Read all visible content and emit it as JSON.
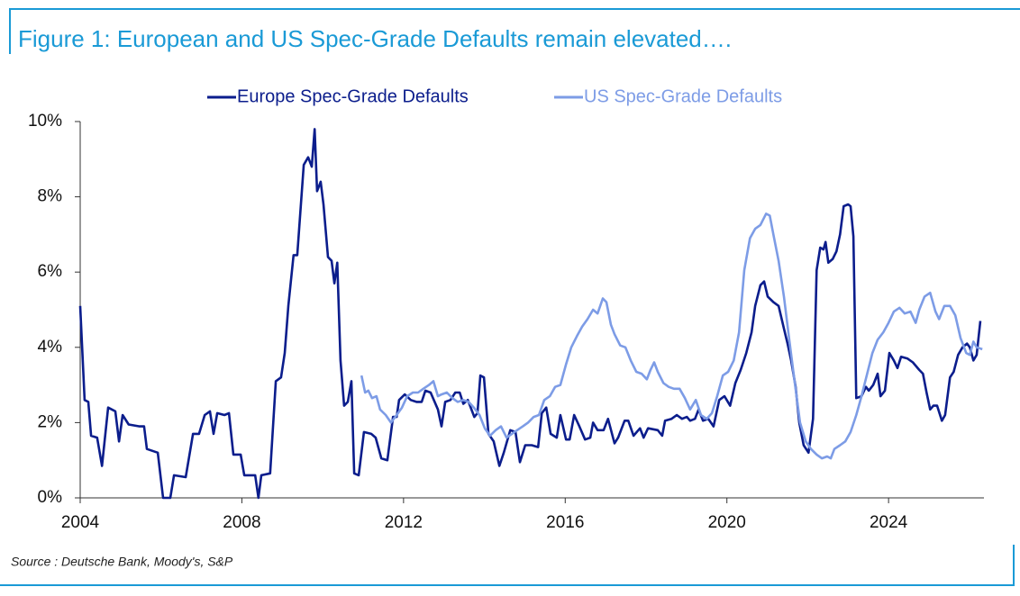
{
  "chart_data": {
    "type": "line",
    "title": "Figure 1: European and US Spec-Grade Defaults remain elevated….",
    "source": "Source : Deutsche Bank, Moody's, S&P",
    "xlim": [
      2004,
      2026.36
    ],
    "xticks": [
      2004,
      2008,
      2012,
      2016,
      2020,
      2024
    ],
    "ylim": [
      0,
      10
    ],
    "yticks": [
      {
        "value": 0,
        "label": "0%"
      },
      {
        "value": 2,
        "label": "2%"
      },
      {
        "value": 4,
        "label": "4%"
      },
      {
        "value": 6,
        "label": "6%"
      },
      {
        "value": 8,
        "label": "8%"
      },
      {
        "value": 10,
        "label": "10%"
      }
    ],
    "grid": false,
    "legend": "top",
    "series": [
      {
        "name": "Europe Spec-Grade Defaults",
        "color": "#0b1d8c",
        "x": [
          2004.0,
          2004.11,
          2004.2,
          2004.27,
          2004.42,
          2004.54,
          2004.69,
          2004.87,
          2004.96,
          2005.05,
          2005.2,
          2005.47,
          2005.58,
          2005.65,
          2005.92,
          2006.05,
          2006.23,
          2006.32,
          2006.61,
          2006.79,
          2006.94,
          2007.08,
          2007.21,
          2007.3,
          2007.39,
          2007.57,
          2007.68,
          2007.79,
          2007.97,
          2008.06,
          2008.33,
          2008.41,
          2008.48,
          2008.7,
          2008.84,
          2008.97,
          2009.06,
          2009.15,
          2009.28,
          2009.37,
          2009.53,
          2009.64,
          2009.73,
          2009.8,
          2009.86,
          2009.95,
          2010.02,
          2010.13,
          2010.22,
          2010.29,
          2010.36,
          2010.44,
          2010.53,
          2010.62,
          2010.71,
          2010.78,
          2010.89,
          2011.02,
          2011.2,
          2011.31,
          2011.45,
          2011.6,
          2011.74,
          2011.83,
          2011.89,
          2012.03,
          2012.18,
          2012.32,
          2012.45,
          2012.54,
          2012.67,
          2012.85,
          2012.94,
          2013.03,
          2013.16,
          2013.28,
          2013.39,
          2013.48,
          2013.59,
          2013.75,
          2013.83,
          2013.9,
          2013.99,
          2014.1,
          2014.23,
          2014.37,
          2014.48,
          2014.64,
          2014.77,
          2014.88,
          2015.01,
          2015.17,
          2015.33,
          2015.42,
          2015.53,
          2015.64,
          2015.79,
          2015.88,
          2016.02,
          2016.11,
          2016.22,
          2016.35,
          2016.49,
          2016.62,
          2016.69,
          2016.8,
          2016.95,
          2017.06,
          2017.22,
          2017.31,
          2017.47,
          2017.56,
          2017.69,
          2017.85,
          2017.94,
          2018.05,
          2018.29,
          2018.4,
          2018.47,
          2018.63,
          2018.76,
          2018.89,
          2019.01,
          2019.09,
          2019.21,
          2019.3,
          2019.41,
          2019.54,
          2019.67,
          2019.81,
          2019.94,
          2020.08,
          2020.21,
          2020.34,
          2020.48,
          2020.61,
          2020.7,
          2020.83,
          2020.92,
          2021.01,
          2021.15,
          2021.28,
          2021.41,
          2021.5,
          2021.59,
          2021.7,
          2021.79,
          2021.9,
          2022.02,
          2022.13,
          2022.22,
          2022.31,
          2022.39,
          2022.44,
          2022.51,
          2022.62,
          2022.71,
          2022.8,
          2022.89,
          2023.0,
          2023.06,
          2023.13,
          2023.2,
          2023.33,
          2023.44,
          2023.51,
          2023.62,
          2023.73,
          2023.8,
          2023.91,
          2024.02,
          2024.13,
          2024.22,
          2024.31,
          2024.47,
          2024.6,
          2024.76,
          2024.85,
          2024.94,
          2025.03,
          2025.11,
          2025.2,
          2025.32,
          2025.4,
          2025.52,
          2025.61,
          2025.72,
          2025.83,
          2025.94,
          2026.01,
          2026.1,
          2026.18,
          2026.27
        ],
        "values": [
          5.1,
          2.6,
          2.55,
          1.65,
          1.6,
          0.85,
          2.4,
          2.3,
          1.5,
          2.2,
          1.95,
          1.9,
          1.9,
          1.3,
          1.2,
          0,
          0,
          0.6,
          0.55,
          1.7,
          1.7,
          2.2,
          2.3,
          1.7,
          2.25,
          2.2,
          2.25,
          1.15,
          1.15,
          0.6,
          0.6,
          0,
          0.6,
          0.65,
          3.1,
          3.2,
          3.85,
          5.1,
          6.45,
          6.45,
          8.85,
          9.05,
          8.8,
          9.8,
          8.15,
          8.4,
          7.8,
          6.4,
          6.3,
          5.7,
          6.25,
          3.65,
          2.45,
          2.55,
          3.1,
          0.65,
          0.6,
          1.75,
          1.7,
          1.6,
          1.05,
          1.0,
          2.15,
          2.15,
          2.6,
          2.75,
          2.6,
          2.55,
          2.55,
          2.85,
          2.8,
          2.35,
          1.9,
          2.55,
          2.6,
          2.8,
          2.8,
          2.5,
          2.6,
          2.15,
          2.25,
          3.25,
          3.2,
          1.7,
          1.5,
          0.85,
          1.2,
          1.8,
          1.75,
          0.95,
          1.4,
          1.4,
          1.35,
          2.25,
          2.4,
          1.7,
          1.6,
          2.2,
          1.55,
          1.55,
          2.2,
          1.9,
          1.55,
          1.6,
          2.0,
          1.8,
          1.8,
          2.1,
          1.45,
          1.6,
          2.05,
          2.05,
          1.65,
          1.85,
          1.6,
          1.85,
          1.8,
          1.65,
          2.05,
          2.1,
          2.2,
          2.1,
          2.15,
          2.05,
          2.1,
          2.35,
          2.05,
          2.1,
          1.9,
          2.6,
          2.7,
          2.45,
          3.05,
          3.4,
          3.85,
          4.4,
          5.1,
          5.65,
          5.75,
          5.35,
          5.2,
          5.1,
          4.5,
          4.1,
          3.65,
          2.95,
          2.0,
          1.4,
          1.2,
          2.1,
          6.05,
          6.65,
          6.6,
          6.8,
          6.25,
          6.35,
          6.55,
          7.0,
          7.75,
          7.8,
          7.75,
          6.95,
          2.65,
          2.7,
          2.95,
          2.85,
          3.0,
          3.3,
          2.7,
          2.85,
          3.85,
          3.65,
          3.45,
          3.75,
          3.7,
          3.6,
          3.4,
          3.3,
          2.8,
          2.35,
          2.45,
          2.45,
          2.05,
          2.2,
          3.2,
          3.35,
          3.8,
          4.0,
          4.1,
          4.0,
          3.65,
          3.8,
          4.7
        ]
      },
      {
        "name": "US Spec-Grade Defaults",
        "color": "#7d9ce6",
        "x": [
          2010.96,
          2011.05,
          2011.13,
          2011.22,
          2011.33,
          2011.42,
          2011.56,
          2011.69,
          2011.83,
          2011.96,
          2012.09,
          2012.23,
          2012.36,
          2012.49,
          2012.63,
          2012.74,
          2012.85,
          2012.94,
          2013.07,
          2013.21,
          2013.34,
          2013.48,
          2013.61,
          2013.74,
          2013.88,
          2014.01,
          2014.14,
          2014.28,
          2014.41,
          2014.55,
          2014.68,
          2014.81,
          2014.95,
          2015.08,
          2015.22,
          2015.35,
          2015.48,
          2015.62,
          2015.75,
          2015.88,
          2016.02,
          2016.15,
          2016.29,
          2016.42,
          2016.55,
          2016.69,
          2016.8,
          2016.93,
          2017.02,
          2017.13,
          2017.22,
          2017.36,
          2017.49,
          2017.62,
          2017.76,
          2017.89,
          2018.02,
          2018.11,
          2018.2,
          2018.29,
          2018.43,
          2018.56,
          2018.69,
          2018.83,
          2018.96,
          2019.09,
          2019.23,
          2019.36,
          2019.5,
          2019.63,
          2019.76,
          2019.9,
          2020.03,
          2020.17,
          2020.3,
          2020.43,
          2020.57,
          2020.7,
          2020.83,
          2020.97,
          2021.06,
          2021.15,
          2021.28,
          2021.41,
          2021.55,
          2021.68,
          2021.81,
          2021.95,
          2022.08,
          2022.22,
          2022.35,
          2022.48,
          2022.57,
          2022.66,
          2022.8,
          2022.93,
          2023.06,
          2023.2,
          2023.33,
          2023.47,
          2023.6,
          2023.73,
          2023.87,
          2024.0,
          2024.13,
          2024.27,
          2024.4,
          2024.54,
          2024.67,
          2024.76,
          2024.89,
          2025.03,
          2025.16,
          2025.25,
          2025.38,
          2025.52,
          2025.65,
          2025.78,
          2025.92,
          2026.01,
          2026.1,
          2026.18,
          2026.32
        ],
        "values": [
          3.25,
          2.8,
          2.85,
          2.65,
          2.7,
          2.35,
          2.2,
          2.0,
          2.2,
          2.4,
          2.7,
          2.8,
          2.8,
          2.9,
          3.0,
          3.1,
          2.7,
          2.75,
          2.8,
          2.65,
          2.55,
          2.6,
          2.55,
          2.4,
          2.2,
          1.85,
          1.65,
          1.8,
          1.9,
          1.6,
          1.7,
          1.8,
          1.9,
          2.0,
          2.15,
          2.2,
          2.6,
          2.7,
          2.95,
          3.0,
          3.55,
          4.0,
          4.3,
          4.55,
          4.75,
          5.0,
          4.9,
          5.3,
          5.2,
          4.6,
          4.35,
          4.05,
          4.0,
          3.65,
          3.35,
          3.3,
          3.15,
          3.4,
          3.6,
          3.35,
          3.05,
          2.95,
          2.9,
          2.9,
          2.65,
          2.35,
          2.6,
          2.2,
          2.1,
          2.25,
          2.7,
          3.25,
          3.35,
          3.65,
          4.4,
          6.05,
          6.9,
          7.15,
          7.25,
          7.55,
          7.5,
          7.0,
          6.3,
          5.35,
          4.15,
          3.05,
          2.0,
          1.5,
          1.3,
          1.15,
          1.05,
          1.1,
          1.05,
          1.3,
          1.4,
          1.5,
          1.75,
          2.2,
          2.7,
          3.3,
          3.85,
          4.2,
          4.4,
          4.65,
          4.95,
          5.05,
          4.9,
          4.95,
          4.65,
          5.0,
          5.35,
          5.45,
          4.95,
          4.75,
          5.1,
          5.1,
          4.85,
          4.25,
          3.85,
          3.8,
          4.15,
          4.0,
          3.95
        ]
      }
    ]
  }
}
